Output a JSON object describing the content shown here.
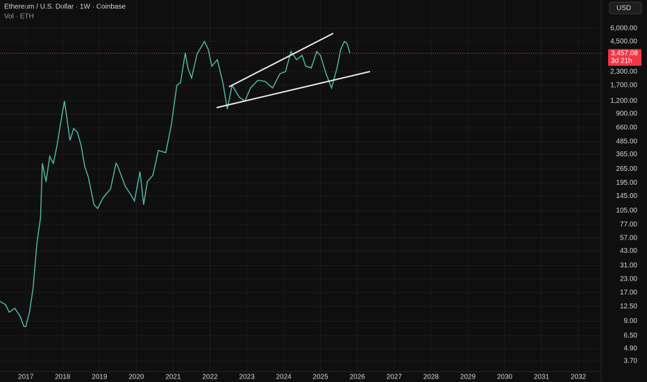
{
  "chart_data": {
    "type": "line",
    "title": "Ethereum / U.S. Dollar · 1W · Coinbase",
    "subtitle": "Vol · ETH",
    "currency": "USD",
    "countdown": "3d 21h",
    "color": "#4db6a0",
    "log_scale": true,
    "grid": true,
    "x": [
      2016.3,
      2016.45,
      2016.55,
      2016.7,
      2016.85,
      2016.95,
      2017.0,
      2017.1,
      2017.2,
      2017.3,
      2017.4,
      2017.45,
      2017.55,
      2017.65,
      2017.75,
      2017.85,
      2017.95,
      2018.05,
      2018.1,
      2018.2,
      2018.3,
      2018.4,
      2018.5,
      2018.6,
      2018.7,
      2018.85,
      2018.95,
      2019.1,
      2019.3,
      2019.45,
      2019.5,
      2019.7,
      2019.85,
      2019.95,
      2020.1,
      2020.2,
      2020.3,
      2020.45,
      2020.6,
      2020.8,
      2020.95,
      2021.1,
      2021.2,
      2021.33,
      2021.4,
      2021.5,
      2021.65,
      2021.85,
      2021.95,
      2022.05,
      2022.2,
      2022.35,
      2022.47,
      2022.6,
      2022.8,
      2022.95,
      2023.1,
      2023.3,
      2023.5,
      2023.7,
      2023.9,
      2024.05,
      2024.2,
      2024.35,
      2024.5,
      2024.6,
      2024.75,
      2024.9,
      2025.0,
      2025.15,
      2025.3,
      2025.45,
      2025.55,
      2025.65,
      2025.72,
      2025.8
    ],
    "values": [
      14,
      13,
      11,
      12,
      10,
      8,
      8,
      11,
      19,
      50,
      90,
      300,
      200,
      350,
      300,
      450,
      750,
      1200,
      900,
      500,
      650,
      600,
      450,
      280,
      220,
      120,
      110,
      140,
      170,
      300,
      280,
      180,
      150,
      130,
      250,
      120,
      200,
      230,
      400,
      380,
      700,
      1700,
      1800,
      3500,
      2500,
      2000,
      3400,
      4500,
      3800,
      2600,
      3000,
      1800,
      1000,
      1700,
      1300,
      1200,
      1600,
      1900,
      1850,
      1600,
      2200,
      2300,
      3600,
      3000,
      3300,
      2600,
      2500,
      3600,
      3300,
      2200,
      1600,
      2500,
      3800,
      4500,
      4300,
      3457.08
    ],
    "last_label": {
      "value": 3457.08,
      "label": "3,457.08"
    },
    "xlim": [
      2016.3,
      2032.62
    ],
    "xticks": [
      2017,
      2018,
      2019,
      2020,
      2021,
      2022,
      2023,
      2024,
      2025,
      2026,
      2027,
      2028,
      2029,
      2030,
      2031,
      2032
    ],
    "ylim": [
      2.94,
      11300
    ],
    "yticks": [
      {
        "value": 6000,
        "label": "6,000.00"
      },
      {
        "value": 4500,
        "label": "4,500.00"
      },
      {
        "value": 2300,
        "label": "2,300.00"
      },
      {
        "value": 1700,
        "label": "1,700.00"
      },
      {
        "value": 1200,
        "label": "1,200.00"
      },
      {
        "value": 900,
        "label": "900.00"
      },
      {
        "value": 660,
        "label": "660.00"
      },
      {
        "value": 485,
        "label": "485.00"
      },
      {
        "value": 365,
        "label": "365.00"
      },
      {
        "value": 265,
        "label": "265.00"
      },
      {
        "value": 195,
        "label": "195.00"
      },
      {
        "value": 145,
        "label": "145.00"
      },
      {
        "value": 105,
        "label": "105.00"
      },
      {
        "value": 77,
        "label": "77.00"
      },
      {
        "value": 57,
        "label": "57.00"
      },
      {
        "value": 43,
        "label": "43.00"
      },
      {
        "value": 31,
        "label": "31.00"
      },
      {
        "value": 23,
        "label": "23.00"
      },
      {
        "value": 17,
        "label": "17.00"
      },
      {
        "value": 12.5,
        "label": "12.50"
      },
      {
        "value": 9,
        "label": "9.00"
      },
      {
        "value": 6.5,
        "label": "6.50"
      },
      {
        "value": 4.9,
        "label": "4.90"
      },
      {
        "value": 3.7,
        "label": "3.70"
      }
    ]
  }
}
